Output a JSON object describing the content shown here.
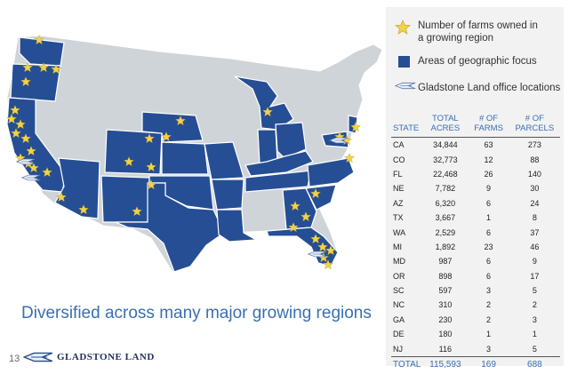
{
  "legend": {
    "star_label": "Number of farms owned in a growing region",
    "focus_label": "Areas of geographic focus",
    "office_label": "Gladstone Land office locations"
  },
  "table": {
    "headers": [
      "STATE",
      "TOTAL ACRES",
      "# OF FARMS",
      "# OF PARCELS"
    ],
    "rows": [
      [
        "CA",
        "34,844",
        "63",
        "273"
      ],
      [
        "CO",
        "32,773",
        "12",
        "88"
      ],
      [
        "FL",
        "22,468",
        "26",
        "140"
      ],
      [
        "NE",
        "7,782",
        "9",
        "30"
      ],
      [
        "AZ",
        "6,320",
        "6",
        "24"
      ],
      [
        "TX",
        "3,667",
        "1",
        "8"
      ],
      [
        "WA",
        "2,529",
        "6",
        "37"
      ],
      [
        "MI",
        "1,892",
        "23",
        "46"
      ],
      [
        "MD",
        "987",
        "6",
        "9"
      ],
      [
        "OR",
        "898",
        "6",
        "17"
      ],
      [
        "SC",
        "597",
        "3",
        "5"
      ],
      [
        "NC",
        "310",
        "2",
        "2"
      ],
      [
        "GA",
        "230",
        "2",
        "3"
      ],
      [
        "DE",
        "180",
        "1",
        "1"
      ],
      [
        "NJ",
        "116",
        "3",
        "5"
      ]
    ],
    "total": [
      "TOTAL",
      "115,593",
      "169",
      "688"
    ]
  },
  "caption": "Diversified across many major growing regions",
  "page_number": "13",
  "logo_text": "GLADSTONE LAND",
  "map": {
    "focus_states": [
      "WA",
      "OR",
      "CA",
      "AZ",
      "CO",
      "NM",
      "TX",
      "OK",
      "KS",
      "NE",
      "MO",
      "AR",
      "LA",
      "MI",
      "IN",
      "OH",
      "KY",
      "TN",
      "NC",
      "SC",
      "GA",
      "FL",
      "MD",
      "DE",
      "NJ"
    ]
  },
  "colors": {
    "focus": "#264e94",
    "other": "#cfd4d9",
    "star": "#f1d24a",
    "accent": "#3a6fb0"
  }
}
